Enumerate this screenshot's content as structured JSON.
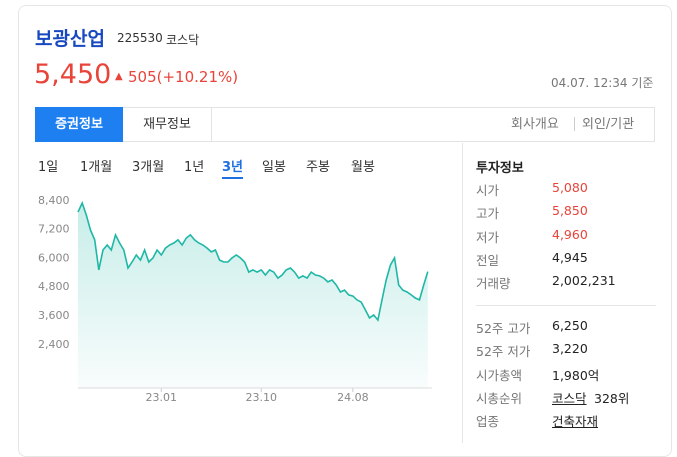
{
  "header": {
    "name": "보광산업",
    "code": "225530",
    "market": "코스닥"
  },
  "price": {
    "current": "5,450",
    "arrow": "▲",
    "change": "505(+10.21%)",
    "timestamp": "04.07. 12:34 기준"
  },
  "tabs": [
    "증권정보",
    "재무정보"
  ],
  "links": [
    "회사개요",
    "외인/기관"
  ],
  "periods": [
    "1일",
    "1개월",
    "3개월",
    "1년",
    "3년",
    "일봉",
    "주봉",
    "월봉"
  ],
  "chart_data": {
    "type": "line",
    "color": "#1fb7a6",
    "ylim": [
      600,
      8600
    ],
    "yticks": [
      {
        "value": 2400,
        "label": "2,400"
      },
      {
        "value": 3600,
        "label": "3,600"
      },
      {
        "value": 4800,
        "label": "4,800"
      },
      {
        "value": 6000,
        "label": "6,000"
      },
      {
        "value": 7200,
        "label": "7,200"
      },
      {
        "value": 8400,
        "label": "8,400"
      }
    ],
    "xlim": [
      0,
      85
    ],
    "xticks": [
      {
        "value": 20,
        "label": "23.01"
      },
      {
        "value": 44,
        "label": "23.10"
      },
      {
        "value": 66,
        "label": "24.08"
      }
    ],
    "values": [
      7930,
      8310,
      7810,
      7180,
      6770,
      5520,
      6350,
      6560,
      6350,
      6980,
      6640,
      6350,
      5600,
      5850,
      6140,
      5930,
      6350,
      5850,
      6020,
      6350,
      6140,
      6430,
      6560,
      6640,
      6770,
      6560,
      6850,
      6980,
      6770,
      6640,
      6560,
      6430,
      6270,
      6350,
      5930,
      5850,
      5850,
      6020,
      6140,
      6020,
      5850,
      5430,
      5520,
      5430,
      5520,
      5310,
      5520,
      5430,
      5180,
      5310,
      5520,
      5600,
      5430,
      5180,
      5270,
      5180,
      5430,
      5310,
      5270,
      5180,
      5020,
      5100,
      4890,
      4600,
      4680,
      4480,
      4430,
      4270,
      4180,
      3850,
      3520,
      3640,
      3430,
      4270,
      5100,
      5720,
      6020,
      4890,
      4680,
      4600,
      4480,
      4350,
      4270,
      4890,
      5450
    ]
  },
  "info": {
    "title": "투자정보",
    "rows": [
      [
        "시가",
        "5,080"
      ],
      [
        "고가",
        "5,850"
      ],
      [
        "저가",
        "4,960"
      ],
      [
        "전일",
        "4,945"
      ],
      [
        "거래량",
        "2,002,231"
      ]
    ],
    "rows2": [
      [
        "52주 고가",
        "6,250"
      ],
      [
        "52주 저가",
        "3,220"
      ],
      [
        "시가총액",
        "1,980억"
      ]
    ],
    "rank": {
      "label": "시총순위",
      "market": "코스닥",
      "value": "328위"
    },
    "industry": {
      "label": "업종",
      "value": "건축자재"
    }
  }
}
